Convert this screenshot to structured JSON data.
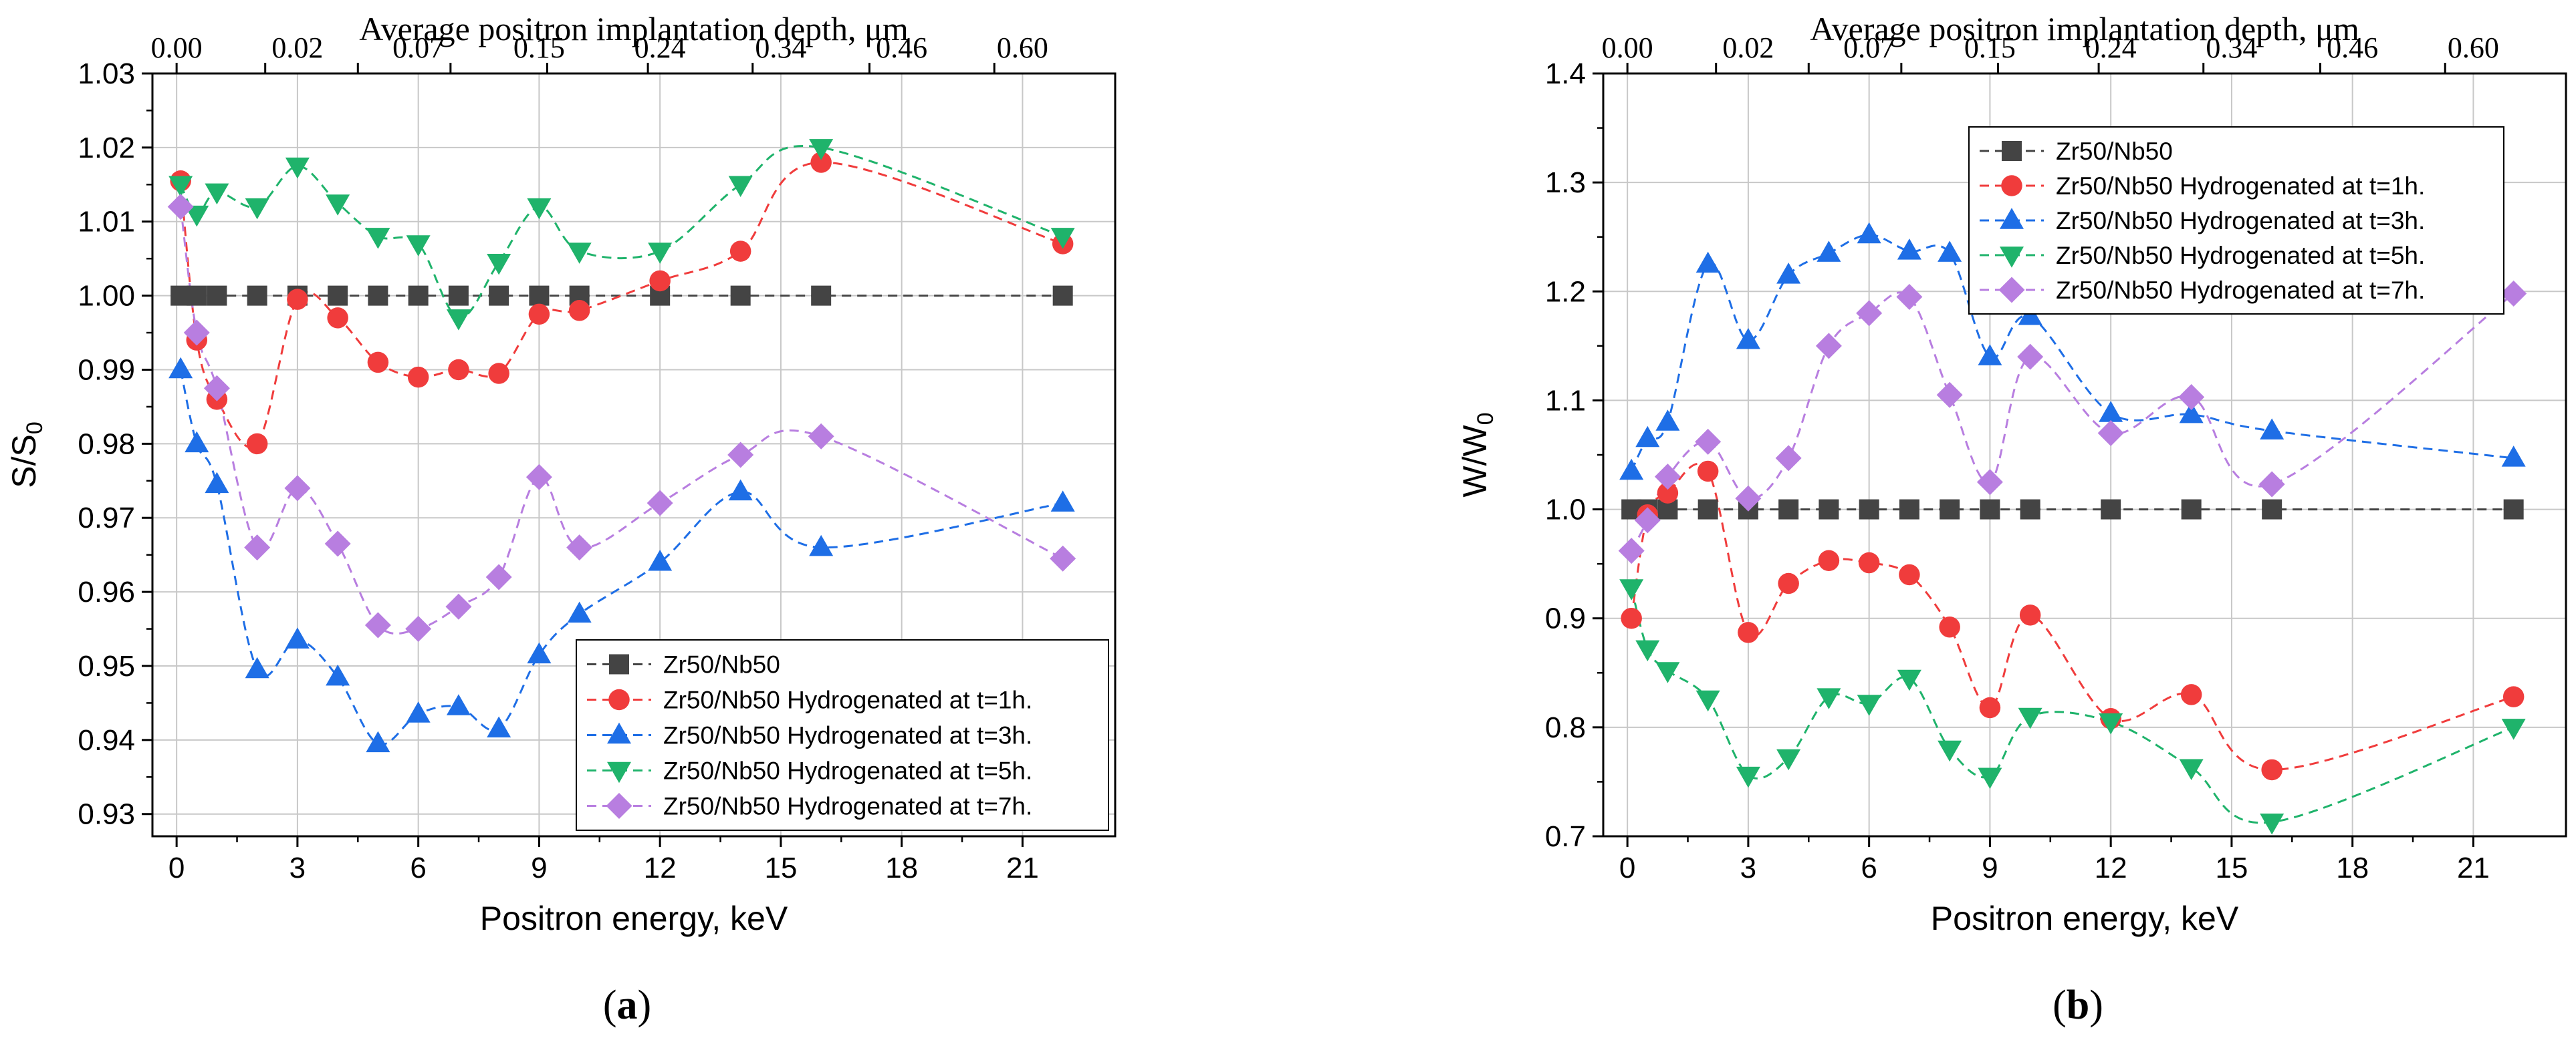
{
  "chart_data": [
    {
      "panel_label": "(a)",
      "panel_letter": "a",
      "type": "scatter",
      "xlabel": "Positron energy, keV",
      "ylabel_main": "S/S",
      "ylabel_sub": "0",
      "top_xlabel": "Average positron implantation depth, μm",
      "xlim": [
        -0.6,
        23.3
      ],
      "ylim": [
        0.927,
        1.03
      ],
      "xticks": [
        0,
        3,
        6,
        9,
        12,
        15,
        18,
        21
      ],
      "yticks": [
        0.93,
        0.94,
        0.95,
        0.96,
        0.97,
        0.98,
        0.99,
        1.0,
        1.01,
        1.02,
        1.03
      ],
      "ytick_labels": [
        "0.93",
        "0.94",
        "0.95",
        "0.96",
        "0.97",
        "0.98",
        "0.99",
        "1.00",
        "1.01",
        "1.02",
        "1.03"
      ],
      "top_ticks": [
        0,
        2.2,
        4.5,
        6.8,
        9.2,
        11.7,
        14.3,
        17.2,
        20.3
      ],
      "top_tick_labels": [
        "0.00",
        "0.02",
        "0.07",
        "0.15",
        "0.24",
        "0.34",
        "0.46",
        "0.60"
      ],
      "top_tick_label_positions": [
        0,
        3,
        6,
        9,
        12,
        15,
        18,
        21
      ],
      "grid": true,
      "legend_position": "bottom-right",
      "series": [
        {
          "name": "Zr50/Nb50",
          "color": "#444444",
          "marker": "square",
          "x": [
            0.1,
            0.5,
            1,
            2,
            3,
            4,
            5,
            6,
            7,
            8,
            9,
            10,
            12,
            14,
            16,
            22
          ],
          "y": [
            1.0,
            1.0,
            1.0,
            1.0,
            1.0,
            1.0,
            1.0,
            1.0,
            1.0,
            1.0,
            1.0,
            1.0,
            1.0,
            1.0,
            1.0,
            1.0
          ]
        },
        {
          "name": "Zr50/Nb50 Hydrogenated at t=1h.",
          "color": "#f03c3c",
          "marker": "circle",
          "x": [
            0.1,
            0.5,
            1,
            2,
            3,
            4,
            5,
            6,
            7,
            8,
            9,
            10,
            12,
            14,
            16,
            22
          ],
          "y": [
            1.0155,
            0.994,
            0.986,
            0.98,
            0.9995,
            0.997,
            0.991,
            0.989,
            0.99,
            0.9895,
            0.9975,
            0.998,
            1.002,
            1.006,
            1.018,
            1.007
          ]
        },
        {
          "name": "Zr50/Nb50 Hydrogenated at t=3h.",
          "color": "#1e6ee6",
          "marker": "triangle-up",
          "x": [
            0.1,
            0.5,
            1,
            2,
            3,
            4,
            5,
            6,
            7,
            8,
            9,
            10,
            12,
            14,
            16,
            22
          ],
          "y": [
            0.99,
            0.98,
            0.9745,
            0.9495,
            0.9535,
            0.9485,
            0.9395,
            0.9435,
            0.9445,
            0.9415,
            0.9515,
            0.957,
            0.964,
            0.9735,
            0.966,
            0.972
          ]
        },
        {
          "name": "Zr50/Nb50 Hydrogenated at t=5h.",
          "color": "#1fb36b",
          "marker": "triangle-down",
          "x": [
            0.1,
            0.5,
            1,
            2,
            3,
            4,
            5,
            6,
            7,
            8,
            9,
            10,
            12,
            14,
            16,
            22
          ],
          "y": [
            1.015,
            1.011,
            1.014,
            1.012,
            1.0175,
            1.0125,
            1.008,
            1.007,
            0.997,
            1.0045,
            1.012,
            1.006,
            1.006,
            1.015,
            1.02,
            1.008
          ]
        },
        {
          "name": "Zr50/Nb50 Hydrogenated at t=7h.",
          "color": "#b87ee0",
          "marker": "diamond",
          "x": [
            0.1,
            0.5,
            1,
            2,
            3,
            4,
            5,
            6,
            7,
            8,
            9,
            10,
            12,
            14,
            16,
            22
          ],
          "y": [
            1.012,
            0.995,
            0.9875,
            0.966,
            0.974,
            0.9665,
            0.9555,
            0.955,
            0.958,
            0.962,
            0.9755,
            0.966,
            0.972,
            0.9785,
            0.981,
            0.9645
          ]
        }
      ]
    },
    {
      "panel_label": "(b)",
      "panel_letter": "b",
      "type": "scatter",
      "xlabel": "Positron energy, keV",
      "ylabel_main": "W/W",
      "ylabel_sub": "0",
      "top_xlabel": "Average positron implantation depth, μm",
      "xlim": [
        -0.6,
        23.3
      ],
      "ylim": [
        0.7,
        1.4
      ],
      "xticks": [
        0,
        3,
        6,
        9,
        12,
        15,
        18,
        21
      ],
      "yticks": [
        0.7,
        0.8,
        0.9,
        1.0,
        1.1,
        1.2,
        1.3,
        1.4
      ],
      "ytick_labels": [
        "0.7",
        "0.8",
        "0.9",
        "1.0",
        "1.1",
        "1.2",
        "1.3",
        "1.4"
      ],
      "top_ticks": [
        0,
        2.2,
        4.5,
        6.8,
        9.2,
        11.7,
        14.3,
        17.2,
        20.3
      ],
      "top_tick_labels": [
        "0.00",
        "0.02",
        "0.07",
        "0.15",
        "0.24",
        "0.34",
        "0.46",
        "0.60"
      ],
      "top_tick_label_positions": [
        0,
        3,
        6,
        9,
        12,
        15,
        18,
        21
      ],
      "grid": true,
      "legend_position": "top",
      "series": [
        {
          "name": "Zr50/Nb50",
          "color": "#444444",
          "marker": "square",
          "x": [
            0.1,
            0.5,
            1,
            2,
            3,
            4,
            5,
            6,
            7,
            8,
            9,
            10,
            12,
            14,
            16,
            22
          ],
          "y": [
            1.0,
            1.0,
            1.0,
            1.0,
            1.0,
            1.0,
            1.0,
            1.0,
            1.0,
            1.0,
            1.0,
            1.0,
            1.0,
            1.0,
            1.0,
            1.0
          ]
        },
        {
          "name": "Zr50/Nb50 Hydrogenated at t=1h.",
          "color": "#f03c3c",
          "marker": "circle",
          "x": [
            0.1,
            0.5,
            1,
            2,
            3,
            4,
            5,
            6,
            7,
            8,
            9,
            10,
            12,
            14,
            16,
            22
          ],
          "y": [
            0.9,
            0.995,
            1.015,
            1.035,
            0.887,
            0.932,
            0.953,
            0.951,
            0.94,
            0.892,
            0.818,
            0.903,
            0.808,
            0.83,
            0.761,
            0.828
          ]
        },
        {
          "name": "Zr50/Nb50 Hydrogenated at t=3h.",
          "color": "#1e6ee6",
          "marker": "triangle-up",
          "x": [
            0.1,
            0.5,
            1,
            2,
            3,
            4,
            5,
            6,
            7,
            8,
            9,
            10,
            12,
            14,
            16,
            22
          ],
          "y": [
            1.035,
            1.065,
            1.08,
            1.225,
            1.155,
            1.215,
            1.235,
            1.252,
            1.237,
            1.235,
            1.14,
            1.177,
            1.088,
            1.087,
            1.072,
            1.047
          ]
        },
        {
          "name": "Zr50/Nb50 Hydrogenated at t=5h.",
          "color": "#1fb36b",
          "marker": "triangle-down",
          "x": [
            0.1,
            0.5,
            1,
            2,
            3,
            4,
            5,
            6,
            7,
            8,
            9,
            10,
            12,
            14,
            16,
            22
          ],
          "y": [
            0.928,
            0.872,
            0.852,
            0.826,
            0.756,
            0.772,
            0.828,
            0.822,
            0.845,
            0.78,
            0.755,
            0.81,
            0.805,
            0.763,
            0.713,
            0.8
          ]
        },
        {
          "name": "Zr50/Nb50 Hydrogenated at t=7h.",
          "color": "#b87ee0",
          "marker": "diamond",
          "x": [
            0.1,
            0.5,
            1,
            2,
            3,
            4,
            5,
            6,
            7,
            8,
            9,
            10,
            12,
            14,
            16,
            22
          ],
          "y": [
            0.962,
            0.99,
            1.03,
            1.062,
            1.01,
            1.047,
            1.15,
            1.18,
            1.195,
            1.105,
            1.025,
            1.14,
            1.07,
            1.103,
            1.023,
            1.198
          ]
        }
      ]
    }
  ]
}
